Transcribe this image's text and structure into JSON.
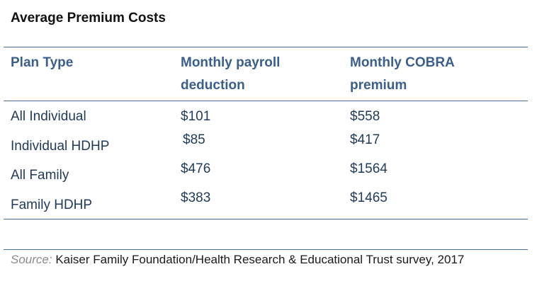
{
  "title": "Average Premium Costs",
  "table": {
    "headers": {
      "plan_type": "Plan Type",
      "payroll_line1": "Monthly payroll",
      "payroll_line2": "deduction",
      "cobra_line1": "Monthly COBRA",
      "cobra_line2": "premium"
    },
    "rows": [
      {
        "plan": "All Individual",
        "payroll": "$101",
        "cobra": "$558"
      },
      {
        "plan": "Individual HDHP",
        "payroll": "$85",
        "cobra": "$417"
      },
      {
        "plan": "All Family",
        "payroll": "$476",
        "cobra": "$1564"
      },
      {
        "plan": "Family HDHP",
        "payroll": "$383",
        "cobra": "$1465"
      }
    ]
  },
  "source": {
    "label": "Source:",
    "text": "Kaiser Family Foundation/Health Research & Educational Trust survey, 2017"
  },
  "colors": {
    "header_text": "#3a5f8c",
    "body_text": "#1f3a5a",
    "rule": "#4a6f9a",
    "source_label": "#8a8a8a"
  }
}
